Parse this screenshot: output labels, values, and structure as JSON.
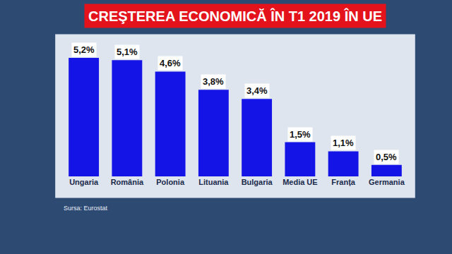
{
  "chart_data": {
    "type": "bar",
    "title": "CREŞTEREA ECONOMICĂ ÎN T1 2019 ÎN UE",
    "categories": [
      "Ungaria",
      "România",
      "Polonia",
      "Lituania",
      "Bulgaria",
      "Media UE",
      "Franța",
      "Germania"
    ],
    "values": [
      5.2,
      5.1,
      4.6,
      3.8,
      3.4,
      1.5,
      1.1,
      0.5
    ],
    "value_labels": [
      "5,2%",
      "5,1%",
      "4,6%",
      "3,8%",
      "3,4%",
      "1,5%",
      "1,1%",
      "0,5%"
    ],
    "color": "#1414e6",
    "data_labels": true,
    "tick_labels": "x",
    "source": "Sursa: Eurostat"
  }
}
